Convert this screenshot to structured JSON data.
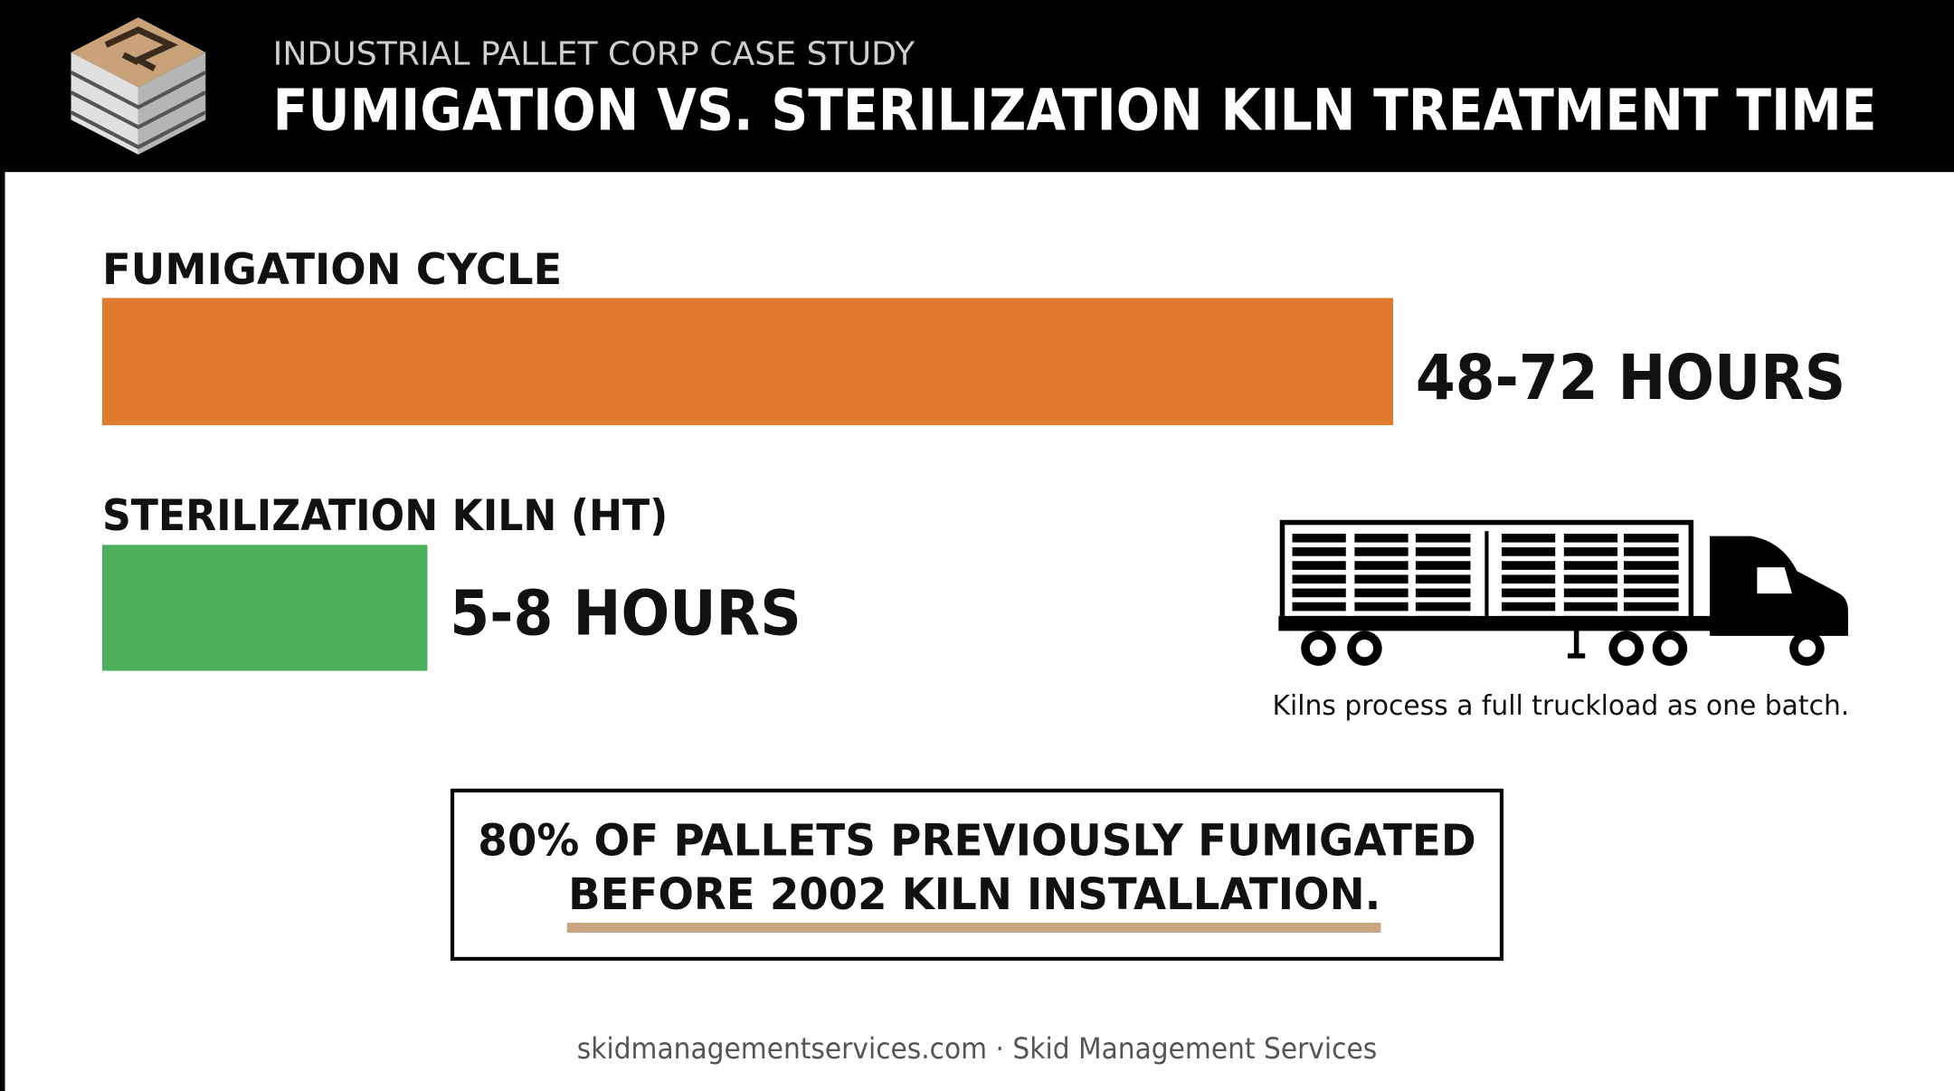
{
  "header": {
    "subtitle": "INDUSTRIAL PALLET CORP CASE STUDY",
    "title": "FUMIGATION VS. STERILIZATION KILN TREATMENT TIME"
  },
  "comparison": [
    {
      "label": "FUMIGATION CYCLE",
      "duration": "48-72 HOURS"
    },
    {
      "label": "STERILIZATION KILN (HT)",
      "duration": "5-8 HOURS"
    }
  ],
  "truck_caption": "Kilns process a full truckload as one batch.",
  "callout": {
    "lines": [
      "80% OF PALLETS PREVIOUSLY FUMIGATED",
      "BEFORE 2002 KILN INSTALLATION."
    ]
  },
  "footer": "skidmanagementservices.com · Skid Management Services"
}
